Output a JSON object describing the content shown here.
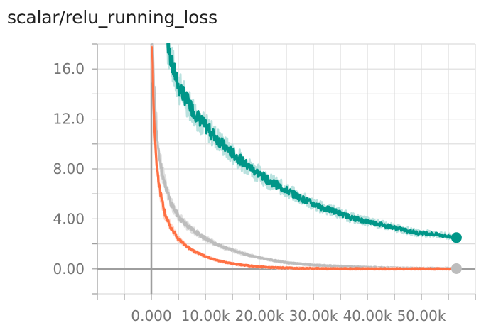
{
  "chart_data": {
    "type": "line",
    "title": "scalar/relu_running_loss",
    "xlabel": "",
    "ylabel": "",
    "xlim": [
      -10000,
      60000
    ],
    "ylim": [
      -2,
      18
    ],
    "x_ticks": [
      {
        "value": 0,
        "label": "0.000"
      },
      {
        "value": 10000,
        "label": "10.00k"
      },
      {
        "value": 20000,
        "label": "20.00k"
      },
      {
        "value": 30000,
        "label": "30.00k"
      },
      {
        "value": 40000,
        "label": "40.00k"
      },
      {
        "value": 50000,
        "label": "50.00k"
      }
    ],
    "y_ticks": [
      {
        "value": 0,
        "label": "0.00"
      },
      {
        "value": 4,
        "label": "4.00"
      },
      {
        "value": 8,
        "label": "8.00"
      },
      {
        "value": 12,
        "label": "12.0"
      },
      {
        "value": 16,
        "label": "16.0"
      }
    ],
    "grid": true,
    "series": [
      {
        "color": "#009688",
        "halo_color": "#b2dfdb",
        "end_marker": true,
        "x": [
          3000,
          4000,
          5000,
          6000,
          8000,
          10000,
          12000,
          14000,
          16000,
          18000,
          20000,
          22000,
          25000,
          28000,
          31000,
          34000,
          37000,
          40000,
          43000,
          46000,
          49000,
          52000,
          55000,
          56500
        ],
        "y": [
          17.9,
          16.1,
          14.6,
          13.9,
          12.5,
          11.4,
          10.5,
          9.6,
          8.9,
          8.2,
          7.6,
          7.0,
          6.3,
          5.6,
          5.0,
          4.6,
          4.1,
          3.8,
          3.5,
          3.2,
          2.9,
          2.8,
          2.6,
          2.5
        ]
      },
      {
        "color": "#bdbdbd",
        "halo_color": "#dcdcdc",
        "end_marker": true,
        "x": [
          200,
          500,
          800,
          1200,
          1800,
          2500,
          3500,
          5000,
          7000,
          9000,
          11000,
          13000,
          15000,
          18000,
          21000,
          25000,
          30000,
          35000,
          40000,
          45000,
          50000,
          56500
        ],
        "y": [
          18.0,
          14.5,
          12.0,
          10.0,
          8.2,
          6.8,
          5.4,
          4.2,
          3.3,
          2.7,
          2.2,
          1.8,
          1.5,
          1.1,
          0.8,
          0.5,
          0.3,
          0.2,
          0.12,
          0.07,
          0.04,
          0.02
        ]
      },
      {
        "color": "#ff7043",
        "halo_color": "#ffccbc",
        "end_marker": false,
        "x": [
          100,
          300,
          500,
          800,
          1200,
          1800,
          2500,
          3500,
          5000,
          6500,
          8000,
          10000,
          12000,
          14000,
          16000,
          18000,
          20000,
          23000,
          27000,
          32000,
          38000,
          45000,
          56000
        ],
        "y": [
          18.0,
          15.0,
          12.0,
          9.5,
          7.5,
          5.8,
          4.4,
          3.4,
          2.4,
          1.8,
          1.4,
          1.0,
          0.7,
          0.5,
          0.35,
          0.25,
          0.17,
          0.1,
          0.05,
          0.02,
          0.01,
          0.005,
          0.0
        ]
      }
    ]
  }
}
